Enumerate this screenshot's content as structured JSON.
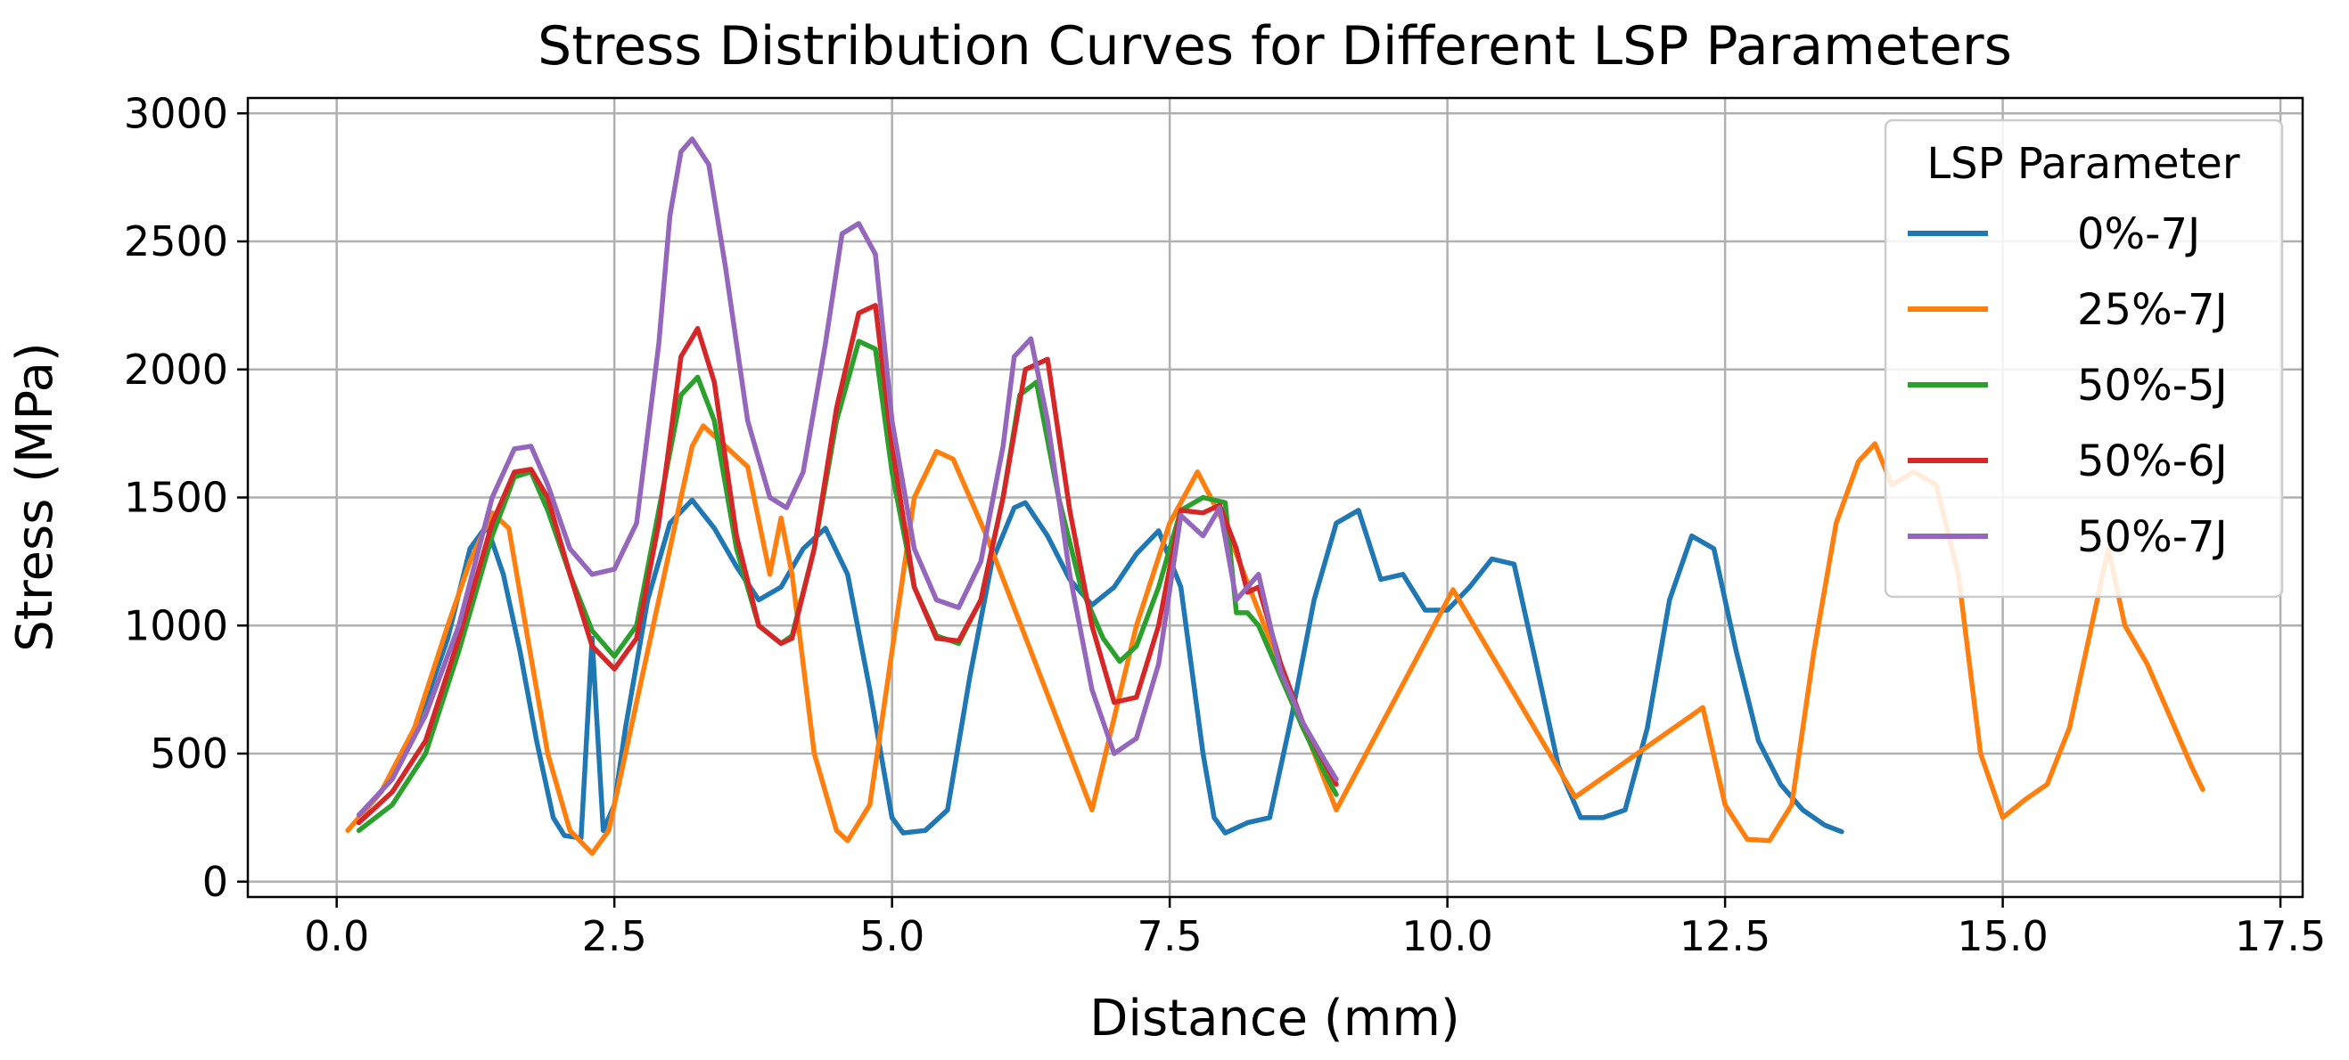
{
  "chart_data": {
    "type": "line",
    "title": "Stress Distribution Curves for Different LSP Parameters",
    "xlabel": "Distance (mm)",
    "ylabel": "Stress (MPa)",
    "xlim": [
      -0.8,
      17.7
    ],
    "ylim": [
      -60,
      3060
    ],
    "xticks": [
      0.0,
      2.5,
      5.0,
      7.5,
      10.0,
      12.5,
      15.0,
      17.5
    ],
    "xtick_labels": [
      "0.0",
      "2.5",
      "5.0",
      "7.5",
      "10.0",
      "12.5",
      "15.0",
      "17.5"
    ],
    "yticks": [
      0,
      500,
      1000,
      1500,
      2000,
      2500,
      3000
    ],
    "ytick_labels": [
      "0",
      "500",
      "1000",
      "1500",
      "2000",
      "2500",
      "3000"
    ],
    "grid": true,
    "legend": {
      "title": "LSP Parameter",
      "position": "top-right"
    },
    "series": [
      {
        "name": "0%-7J",
        "color": "#1f77b4",
        "x": [
          0.2,
          0.4,
          0.6,
          0.8,
          1.0,
          1.2,
          1.35,
          1.5,
          1.65,
          1.8,
          1.95,
          2.05,
          2.2,
          2.3,
          2.4,
          2.5,
          2.6,
          2.8,
          3.0,
          3.2,
          3.4,
          3.6,
          3.8,
          4.0,
          4.2,
          4.4,
          4.6,
          4.8,
          5.0,
          5.1,
          5.3,
          5.5,
          5.7,
          5.9,
          6.1,
          6.2,
          6.4,
          6.6,
          6.8,
          7.0,
          7.2,
          7.4,
          7.6,
          7.8,
          7.9,
          8.0,
          8.2,
          8.4,
          8.6,
          8.8,
          9.0,
          9.2,
          9.4,
          9.6,
          9.8,
          10.0,
          10.2,
          10.4,
          10.6,
          10.8,
          11.0,
          11.2,
          11.4,
          11.6,
          11.8,
          12.0,
          12.2,
          12.4,
          12.6,
          12.8,
          13.0,
          13.2,
          13.4,
          13.55
        ],
        "values": [
          250,
          350,
          500,
          700,
          950,
          1300,
          1390,
          1200,
          900,
          550,
          250,
          180,
          170,
          950,
          200,
          300,
          600,
          1100,
          1400,
          1490,
          1380,
          1230,
          1100,
          1150,
          1300,
          1380,
          1200,
          750,
          250,
          190,
          200,
          280,
          800,
          1250,
          1460,
          1480,
          1350,
          1180,
          1080,
          1150,
          1280,
          1370,
          1150,
          500,
          250,
          190,
          230,
          250,
          650,
          1100,
          1400,
          1450,
          1180,
          1200,
          1060,
          1060,
          1150,
          1260,
          1240,
          850,
          450,
          250,
          250,
          280,
          600,
          1100,
          1350,
          1300,
          900,
          550,
          380,
          280,
          220,
          195
        ]
      },
      {
        "name": "25%-7J",
        "color": "#ff7f0e",
        "x": [
          0.1,
          0.4,
          0.7,
          1.0,
          1.2,
          1.4,
          1.55,
          1.7,
          1.9,
          2.1,
          2.3,
          2.45,
          2.6,
          2.8,
          3.0,
          3.2,
          3.3,
          3.5,
          3.7,
          3.9,
          4.0,
          4.1,
          4.3,
          4.5,
          4.6,
          4.8,
          5.0,
          5.2,
          5.4,
          5.55,
          5.7,
          5.85,
          6.8,
          7.2,
          7.5,
          7.75,
          8.0,
          9.0,
          10.05,
          11.15,
          12.3,
          12.5,
          12.7,
          12.9,
          13.1,
          13.3,
          13.5,
          13.7,
          13.85,
          14.0,
          14.2,
          14.4,
          14.6,
          14.8,
          15.0,
          15.2,
          15.4,
          15.6,
          15.8,
          15.95,
          16.1,
          16.3,
          16.5,
          16.7,
          16.8
        ],
        "values": [
          200,
          350,
          600,
          1000,
          1250,
          1440,
          1380,
          1000,
          500,
          200,
          110,
          200,
          500,
          900,
          1300,
          1700,
          1780,
          1700,
          1620,
          1200,
          1420,
          1200,
          500,
          200,
          160,
          300,
          900,
          1500,
          1680,
          1650,
          1500,
          1350,
          280,
          1000,
          1400,
          1600,
          1390,
          280,
          1140,
          330,
          680,
          300,
          165,
          160,
          300,
          900,
          1400,
          1640,
          1710,
          1550,
          1600,
          1550,
          1200,
          500,
          250,
          320,
          380,
          600,
          1000,
          1300,
          1000,
          850,
          650,
          450,
          360
        ]
      },
      {
        "name": "50%-5J",
        "color": "#2ca02c",
        "x": [
          0.2,
          0.5,
          0.8,
          1.1,
          1.4,
          1.6,
          1.75,
          1.9,
          2.1,
          2.3,
          2.5,
          2.7,
          2.9,
          3.1,
          3.25,
          3.4,
          3.6,
          3.8,
          4.0,
          4.1,
          4.3,
          4.5,
          4.7,
          4.85,
          5.0,
          5.2,
          5.4,
          5.6,
          5.8,
          6.0,
          6.15,
          6.3,
          6.5,
          6.7,
          6.9,
          7.05,
          7.2,
          7.4,
          7.6,
          7.8,
          8.0,
          8.1,
          8.2,
          8.3,
          8.5,
          8.7,
          8.9,
          9.0
        ],
        "values": [
          200,
          300,
          500,
          900,
          1350,
          1580,
          1600,
          1450,
          1200,
          980,
          880,
          1000,
          1450,
          1900,
          1970,
          1800,
          1300,
          1000,
          930,
          960,
          1300,
          1800,
          2110,
          2080,
          1600,
          1150,
          960,
          930,
          1100,
          1500,
          1900,
          1950,
          1500,
          1150,
          950,
          860,
          920,
          1150,
          1450,
          1500,
          1480,
          1050,
          1050,
          1000,
          800,
          600,
          420,
          340
        ]
      },
      {
        "name": "50%-6J",
        "color": "#d62728",
        "x": [
          0.2,
          0.5,
          0.8,
          1.1,
          1.4,
          1.6,
          1.75,
          1.9,
          2.1,
          2.3,
          2.5,
          2.7,
          2.9,
          3.1,
          3.25,
          3.4,
          3.6,
          3.8,
          4.0,
          4.1,
          4.3,
          4.5,
          4.7,
          4.85,
          5.0,
          5.2,
          5.4,
          5.6,
          5.8,
          6.0,
          6.2,
          6.4,
          6.6,
          6.8,
          7.0,
          7.2,
          7.4,
          7.6,
          7.8,
          7.95,
          8.1,
          8.2,
          8.3,
          8.5,
          8.7,
          8.9,
          9.0
        ],
        "values": [
          230,
          350,
          550,
          950,
          1400,
          1600,
          1610,
          1500,
          1200,
          920,
          830,
          950,
          1400,
          2050,
          2160,
          1950,
          1350,
          1000,
          930,
          950,
          1300,
          1850,
          2220,
          2250,
          1700,
          1150,
          950,
          940,
          1100,
          1500,
          2000,
          2040,
          1450,
          1000,
          700,
          720,
          1000,
          1450,
          1440,
          1470,
          1300,
          1130,
          1150,
          850,
          620,
          460,
          380
        ]
      },
      {
        "name": "50%-7J",
        "color": "#9467bd",
        "x": [
          0.2,
          0.5,
          0.8,
          1.1,
          1.4,
          1.6,
          1.75,
          1.9,
          2.1,
          2.3,
          2.5,
          2.7,
          2.9,
          3.0,
          3.1,
          3.2,
          3.35,
          3.5,
          3.7,
          3.9,
          4.05,
          4.2,
          4.4,
          4.55,
          4.7,
          4.85,
          5.0,
          5.2,
          5.4,
          5.6,
          5.8,
          6.0,
          6.1,
          6.25,
          6.4,
          6.6,
          6.8,
          7.0,
          7.2,
          7.4,
          7.6,
          7.8,
          7.95,
          8.1,
          8.3,
          8.5,
          8.7,
          8.9,
          9.0
        ],
        "values": [
          260,
          400,
          650,
          1000,
          1500,
          1690,
          1700,
          1550,
          1300,
          1200,
          1220,
          1400,
          2100,
          2600,
          2850,
          2900,
          2800,
          2400,
          1800,
          1500,
          1460,
          1600,
          2100,
          2530,
          2570,
          2450,
          1800,
          1300,
          1100,
          1070,
          1250,
          1700,
          2050,
          2120,
          1800,
          1200,
          750,
          500,
          560,
          850,
          1430,
          1350,
          1460,
          1100,
          1200,
          820,
          620,
          470,
          400
        ]
      }
    ]
  }
}
